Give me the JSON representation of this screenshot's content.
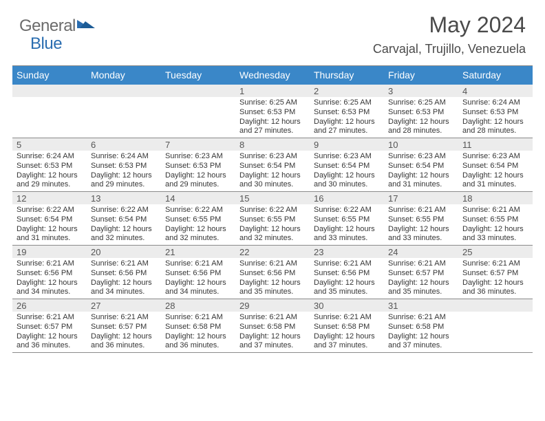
{
  "logo": {
    "text1": "General",
    "text2": "Blue",
    "triangle_color": "#2a6db0"
  },
  "title": "May 2024",
  "location": "Carvajal, Trujillo, Venezuela",
  "colors": {
    "header_bg": "#3a87c8",
    "header_text": "#ffffff",
    "daynum_bg": "#ececec",
    "border": "#8a8a8a",
    "body_text": "#353535"
  },
  "day_headers": [
    "Sunday",
    "Monday",
    "Tuesday",
    "Wednesday",
    "Thursday",
    "Friday",
    "Saturday"
  ],
  "weeks": [
    [
      null,
      null,
      null,
      {
        "n": "1",
        "sr": "6:25 AM",
        "ss": "6:53 PM",
        "dl": "12 hours and 27 minutes."
      },
      {
        "n": "2",
        "sr": "6:25 AM",
        "ss": "6:53 PM",
        "dl": "12 hours and 27 minutes."
      },
      {
        "n": "3",
        "sr": "6:25 AM",
        "ss": "6:53 PM",
        "dl": "12 hours and 28 minutes."
      },
      {
        "n": "4",
        "sr": "6:24 AM",
        "ss": "6:53 PM",
        "dl": "12 hours and 28 minutes."
      }
    ],
    [
      {
        "n": "5",
        "sr": "6:24 AM",
        "ss": "6:53 PM",
        "dl": "12 hours and 29 minutes."
      },
      {
        "n": "6",
        "sr": "6:24 AM",
        "ss": "6:53 PM",
        "dl": "12 hours and 29 minutes."
      },
      {
        "n": "7",
        "sr": "6:23 AM",
        "ss": "6:53 PM",
        "dl": "12 hours and 29 minutes."
      },
      {
        "n": "8",
        "sr": "6:23 AM",
        "ss": "6:54 PM",
        "dl": "12 hours and 30 minutes."
      },
      {
        "n": "9",
        "sr": "6:23 AM",
        "ss": "6:54 PM",
        "dl": "12 hours and 30 minutes."
      },
      {
        "n": "10",
        "sr": "6:23 AM",
        "ss": "6:54 PM",
        "dl": "12 hours and 31 minutes."
      },
      {
        "n": "11",
        "sr": "6:23 AM",
        "ss": "6:54 PM",
        "dl": "12 hours and 31 minutes."
      }
    ],
    [
      {
        "n": "12",
        "sr": "6:22 AM",
        "ss": "6:54 PM",
        "dl": "12 hours and 31 minutes."
      },
      {
        "n": "13",
        "sr": "6:22 AM",
        "ss": "6:54 PM",
        "dl": "12 hours and 32 minutes."
      },
      {
        "n": "14",
        "sr": "6:22 AM",
        "ss": "6:55 PM",
        "dl": "12 hours and 32 minutes."
      },
      {
        "n": "15",
        "sr": "6:22 AM",
        "ss": "6:55 PM",
        "dl": "12 hours and 32 minutes."
      },
      {
        "n": "16",
        "sr": "6:22 AM",
        "ss": "6:55 PM",
        "dl": "12 hours and 33 minutes."
      },
      {
        "n": "17",
        "sr": "6:21 AM",
        "ss": "6:55 PM",
        "dl": "12 hours and 33 minutes."
      },
      {
        "n": "18",
        "sr": "6:21 AM",
        "ss": "6:55 PM",
        "dl": "12 hours and 33 minutes."
      }
    ],
    [
      {
        "n": "19",
        "sr": "6:21 AM",
        "ss": "6:56 PM",
        "dl": "12 hours and 34 minutes."
      },
      {
        "n": "20",
        "sr": "6:21 AM",
        "ss": "6:56 PM",
        "dl": "12 hours and 34 minutes."
      },
      {
        "n": "21",
        "sr": "6:21 AM",
        "ss": "6:56 PM",
        "dl": "12 hours and 34 minutes."
      },
      {
        "n": "22",
        "sr": "6:21 AM",
        "ss": "6:56 PM",
        "dl": "12 hours and 35 minutes."
      },
      {
        "n": "23",
        "sr": "6:21 AM",
        "ss": "6:56 PM",
        "dl": "12 hours and 35 minutes."
      },
      {
        "n": "24",
        "sr": "6:21 AM",
        "ss": "6:57 PM",
        "dl": "12 hours and 35 minutes."
      },
      {
        "n": "25",
        "sr": "6:21 AM",
        "ss": "6:57 PM",
        "dl": "12 hours and 36 minutes."
      }
    ],
    [
      {
        "n": "26",
        "sr": "6:21 AM",
        "ss": "6:57 PM",
        "dl": "12 hours and 36 minutes."
      },
      {
        "n": "27",
        "sr": "6:21 AM",
        "ss": "6:57 PM",
        "dl": "12 hours and 36 minutes."
      },
      {
        "n": "28",
        "sr": "6:21 AM",
        "ss": "6:58 PM",
        "dl": "12 hours and 36 minutes."
      },
      {
        "n": "29",
        "sr": "6:21 AM",
        "ss": "6:58 PM",
        "dl": "12 hours and 37 minutes."
      },
      {
        "n": "30",
        "sr": "6:21 AM",
        "ss": "6:58 PM",
        "dl": "12 hours and 37 minutes."
      },
      {
        "n": "31",
        "sr": "6:21 AM",
        "ss": "6:58 PM",
        "dl": "12 hours and 37 minutes."
      },
      null
    ]
  ],
  "labels": {
    "sunrise": "Sunrise:",
    "sunset": "Sunset:",
    "daylight": "Daylight:"
  }
}
